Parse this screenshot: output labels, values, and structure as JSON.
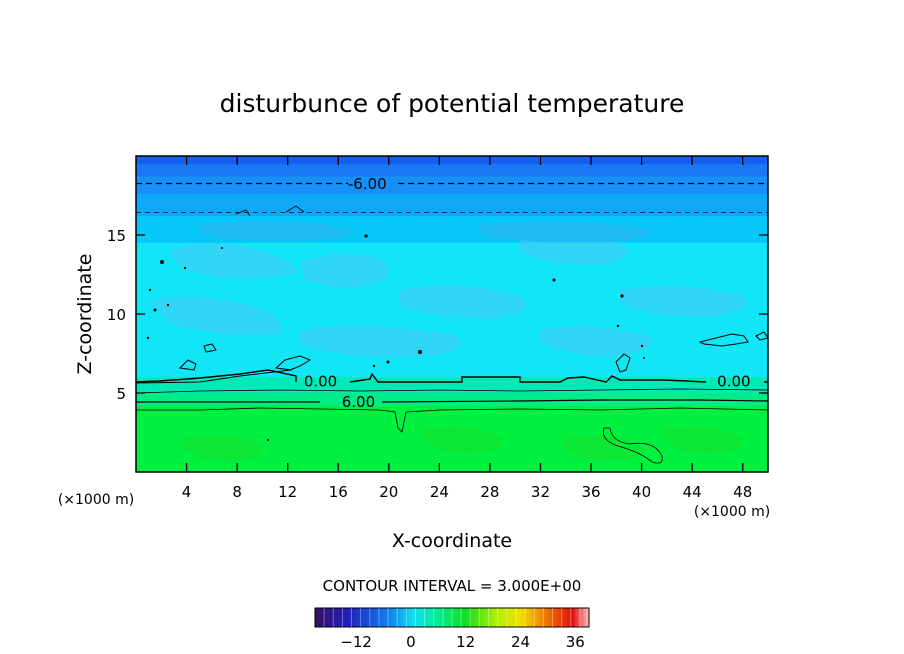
{
  "chart_data": {
    "type": "heatmap",
    "title": "disturbunce of potential temperature",
    "xlabel": "X-coordinate",
    "ylabel": "Z-coordinate",
    "x_unit_label": "(×1000 m)",
    "z_unit_label": "(×1000 m)",
    "xlim": [
      0,
      50
    ],
    "ylim": [
      0,
      20
    ],
    "x_ticks": [
      4,
      8,
      12,
      16,
      20,
      24,
      28,
      32,
      36,
      40,
      44,
      48
    ],
    "y_ticks": [
      5,
      10,
      15
    ],
    "contour_interval_text": "CONTOUR INTERVAL = 3.000E+00",
    "contour_labels": [
      {
        "text": "-6.00",
        "x": 18.3,
        "z": 18.3
      },
      {
        "text": "0.00",
        "x": 14.6,
        "z": 5.8
      },
      {
        "text": "0.00",
        "x": 47.3,
        "z": 5.8
      },
      {
        "text": "6.00",
        "x": 17.6,
        "z": 4.5
      }
    ],
    "bands": [
      {
        "z0": 19.5,
        "z1": 20.0,
        "value": -12,
        "color": "#1560f0"
      },
      {
        "z0": 18.7,
        "z1": 19.5,
        "value": -9,
        "color": "#1a78f4"
      },
      {
        "z0": 17.6,
        "z1": 18.7,
        "value": -6,
        "color": "#1690f6"
      },
      {
        "z0": 16.2,
        "z1": 17.6,
        "value": -3,
        "color": "#10a8f8"
      },
      {
        "z0": 14.5,
        "z1": 16.2,
        "value": -1,
        "color": "#06c8f8"
      },
      {
        "z0": 6.0,
        "z1": 14.5,
        "value": 0,
        "color": "#10e6f6"
      },
      {
        "z0": 5.0,
        "z1": 6.0,
        "value": 3,
        "color": "#00eab8"
      },
      {
        "z0": 4.2,
        "z1": 5.0,
        "value": 6,
        "color": "#00ec86"
      },
      {
        "z0": 0.0,
        "z1": 4.2,
        "value": 9,
        "color": "#00f040"
      }
    ],
    "colorbar": {
      "ticks": [
        -12,
        0,
        12,
        24,
        36
      ],
      "range": [
        -21,
        39
      ]
    },
    "grid": false,
    "legend": "none"
  }
}
